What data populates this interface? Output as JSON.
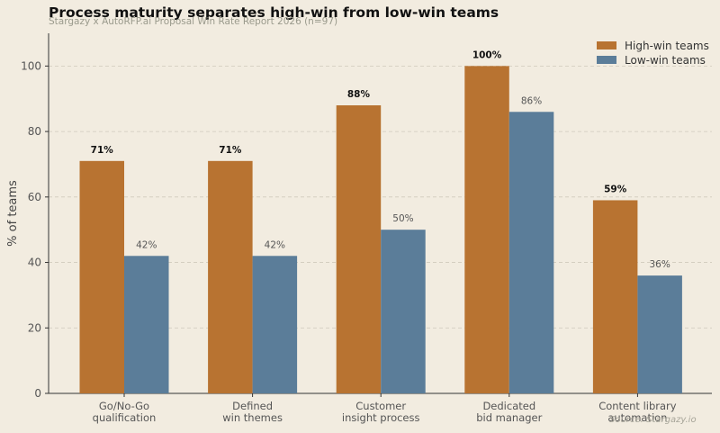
{
  "chart_data": {
    "type": "bar",
    "title": "Process maturity separates high-win from low-win teams",
    "subtitle": "Stargazy x AutoRFP.ai Proposal Win Rate Report 2026 (n=97)",
    "source": "Source: Stargazy.io",
    "categories": [
      [
        "Go/No-Go",
        "qualification"
      ],
      [
        "Defined",
        "win themes"
      ],
      [
        "Customer",
        "insight process"
      ],
      [
        "Dedicated",
        "bid manager"
      ],
      [
        "Content library",
        "automation"
      ]
    ],
    "series": [
      {
        "name": "High-win teams",
        "color": "#b87331",
        "values": [
          71,
          71,
          88,
          100,
          59
        ],
        "labels": [
          "71%",
          "71%",
          "88%",
          "100%",
          "59%"
        ]
      },
      {
        "name": "Low-win teams",
        "color": "#5b7d99",
        "values": [
          42,
          42,
          50,
          86,
          36
        ],
        "labels": [
          "42%",
          "42%",
          "50%",
          "86%",
          "36%"
        ]
      }
    ],
    "xlabel": "",
    "ylabel": "% of teams",
    "ylim": [
      0,
      110
    ],
    "yticks": [
      0,
      20,
      40,
      60,
      80,
      100
    ],
    "grid": true,
    "legend_position": "top-right"
  }
}
